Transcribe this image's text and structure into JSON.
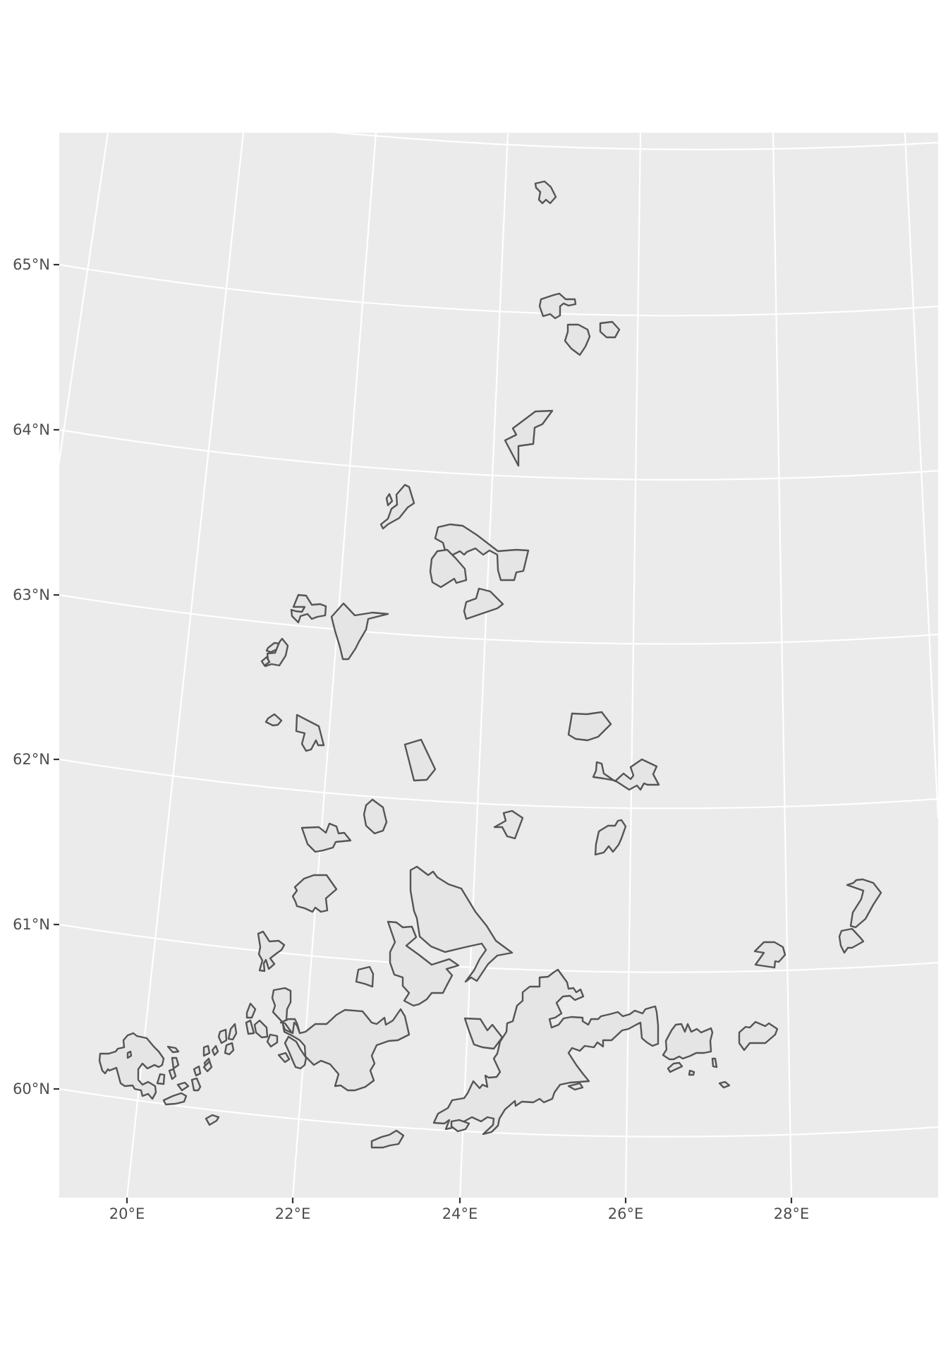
{
  "map": {
    "type": "projected-outline-map",
    "graticule": true,
    "background_color": "#ebebeb",
    "graticule_color": "#ffffff",
    "polygon_fill": "#e5e5e5",
    "polygon_stroke": "#555555",
    "latitude_labels": [
      "65°N",
      "64°N",
      "63°N",
      "62°N",
      "61°N",
      "60°N"
    ],
    "longitude_labels": [
      "20°E",
      "22°E",
      "24°E",
      "26°E",
      "28°E"
    ]
  }
}
